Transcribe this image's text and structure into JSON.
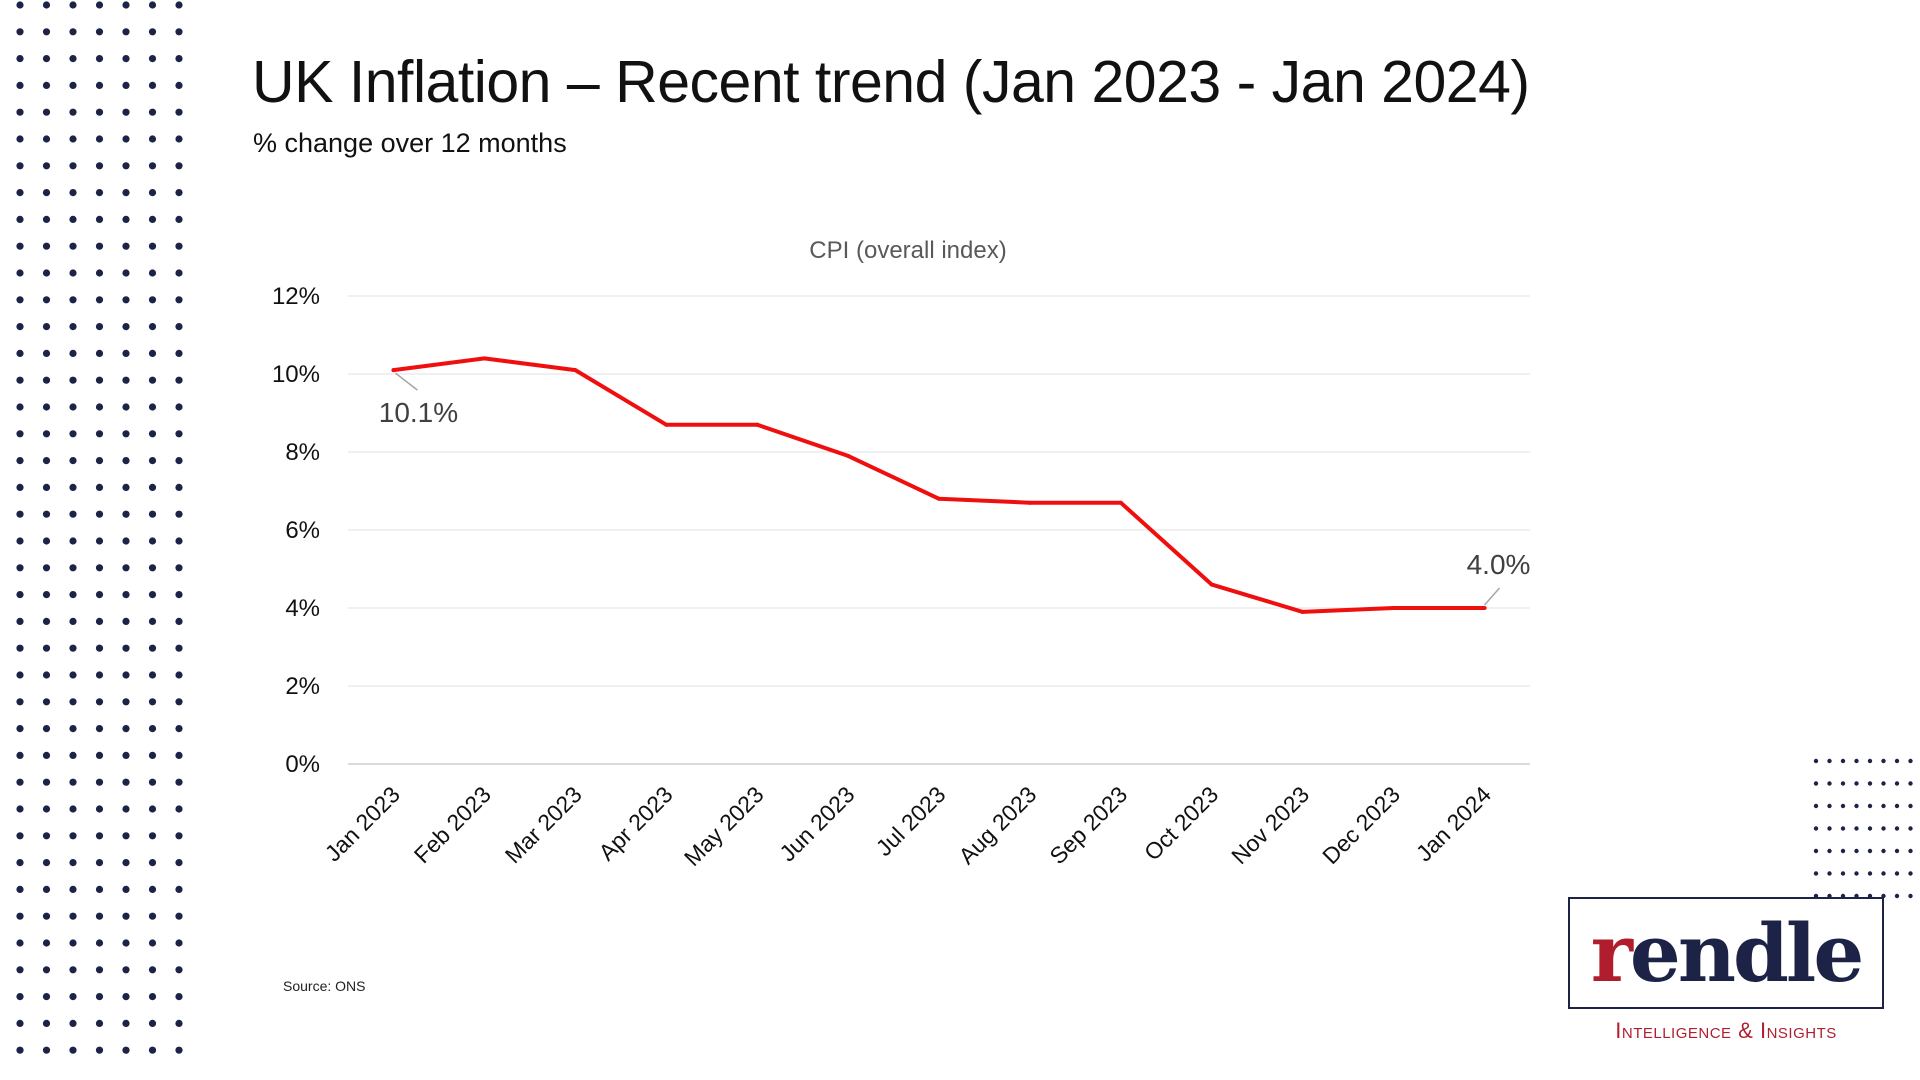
{
  "page": {
    "title": "UK Inflation – Recent trend (Jan 2023 - Jan 2024)",
    "subtitle": "% change over 12 months",
    "source": "Source: ONS"
  },
  "logo": {
    "wordmark": "rendle",
    "tagline": "Intelligence & Insights",
    "colors": {
      "navy": "#1d2347",
      "red": "#b01e2e"
    }
  },
  "decor": {
    "dot_color": "#1d2347"
  },
  "chart_data": {
    "type": "line",
    "title": "CPI (overall index)",
    "xlabel": "",
    "ylabel": "",
    "categories": [
      "Jan 2023",
      "Feb 2023",
      "Mar 2023",
      "Apr 2023",
      "May 2023",
      "Jun 2023",
      "Jul 2023",
      "Aug 2023",
      "Sep 2023",
      "Oct 2023",
      "Nov 2023",
      "Dec 2023",
      "Jan 2024"
    ],
    "series": [
      {
        "name": "",
        "color": "#f00f0f",
        "values": [
          10.1,
          10.4,
          10.1,
          8.7,
          8.7,
          7.9,
          6.8,
          6.7,
          6.7,
          4.6,
          3.9,
          4.0,
          4.0
        ]
      }
    ],
    "ylim": [
      0,
      12
    ],
    "yticks": [
      0,
      2,
      4,
      6,
      8,
      10,
      12
    ],
    "ytick_labels": [
      "0%",
      "2%",
      "4%",
      "6%",
      "8%",
      "10%",
      "12%"
    ],
    "grid": true,
    "legend": "none",
    "annotations": [
      {
        "index": 0,
        "text": "10.1%",
        "side": "below"
      },
      {
        "index": 12,
        "text": "4.0%",
        "side": "above"
      }
    ]
  }
}
